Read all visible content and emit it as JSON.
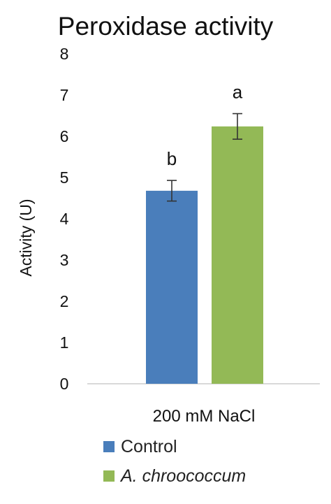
{
  "chart_data": {
    "type": "bar",
    "title": "Peroxidase activity",
    "ylabel": "Activity (U)",
    "xlabel": "",
    "categories": [
      "200 mM NaCl"
    ],
    "ylim": [
      0,
      8
    ],
    "yticks": [
      0,
      1,
      2,
      3,
      4,
      5,
      6,
      7,
      8
    ],
    "grid": false,
    "legend_position": "bottom",
    "series": [
      {
        "name": "Control",
        "values": [
          4.68
        ],
        "error": [
          0.25
        ],
        "label": "b",
        "color": "#4A7EBB"
      },
      {
        "name": "A. chroococcum",
        "values": [
          6.24
        ],
        "error": [
          0.31
        ],
        "label": "a",
        "color": "#93B956"
      }
    ]
  }
}
